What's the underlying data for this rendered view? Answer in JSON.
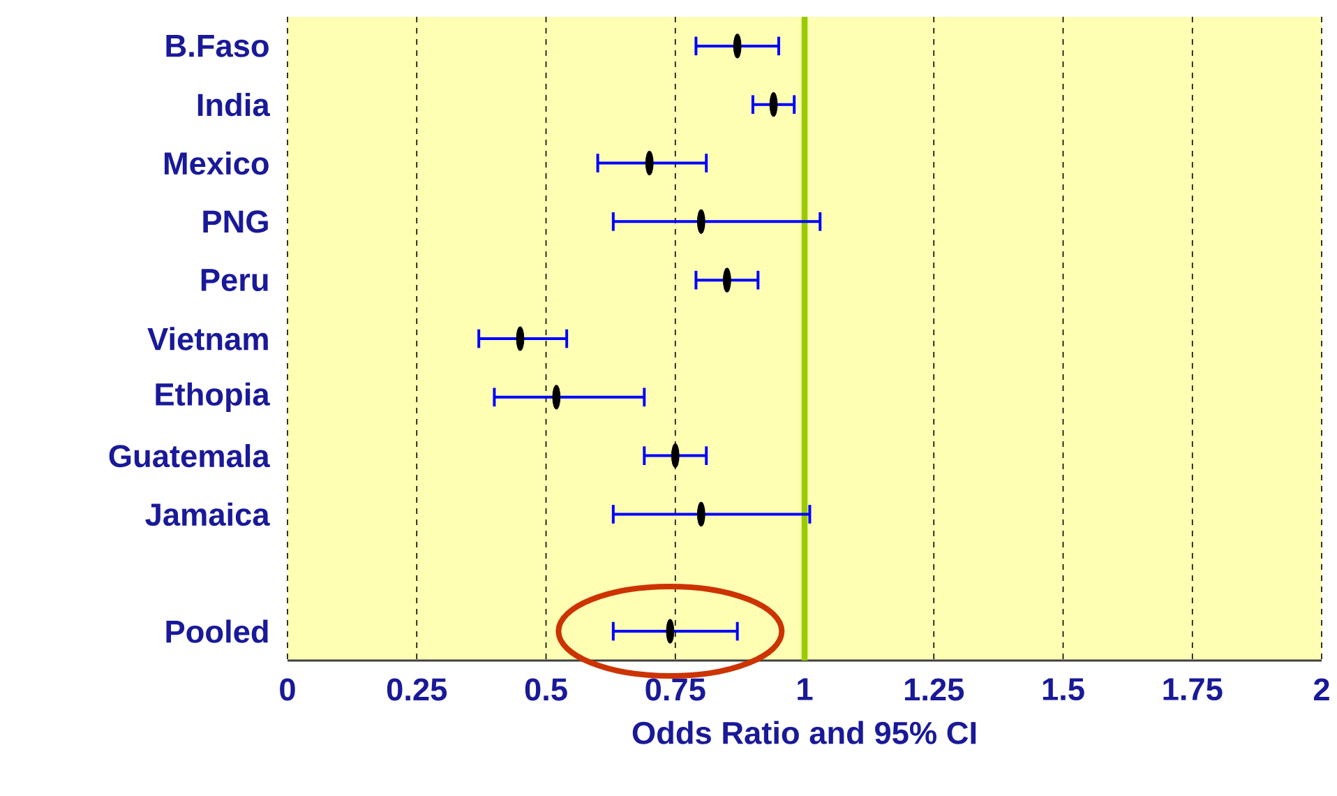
{
  "chart_data": {
    "type": "scatter",
    "orientation": "horizontal",
    "xlabel": "Odds Ratio and 95% CI",
    "categories": [
      "B.Faso",
      "India",
      "Mexico",
      "PNG",
      "Peru",
      "Vietnam",
      "Ethopia",
      "Guatemala",
      "Jamaica",
      null,
      "Pooled"
    ],
    "series": [
      {
        "color": "#000000",
        "values": [
          0.87,
          0.94,
          0.7,
          0.8,
          0.85,
          0.45,
          0.52,
          0.75,
          0.8,
          null,
          0.74
        ],
        "errors": [
          [
            0.79,
            0.95
          ],
          [
            0.9,
            0.98
          ],
          [
            0.6,
            0.81
          ],
          [
            0.63,
            1.03
          ],
          [
            0.79,
            0.91
          ],
          [
            0.37,
            0.54
          ],
          [
            0.4,
            0.69
          ],
          [
            0.69,
            0.81
          ],
          [
            0.63,
            1.01
          ],
          null,
          [
            0.63,
            0.87
          ]
        ]
      }
    ],
    "xlim": [
      0,
      2
    ],
    "xticks": [
      0,
      0.25,
      0.5,
      0.75,
      1,
      1.25,
      1.5,
      1.75,
      2
    ],
    "grid": "x",
    "ref_lines": [
      {
        "axis": "x",
        "value": 1,
        "color": "#99cc00"
      }
    ]
  }
}
